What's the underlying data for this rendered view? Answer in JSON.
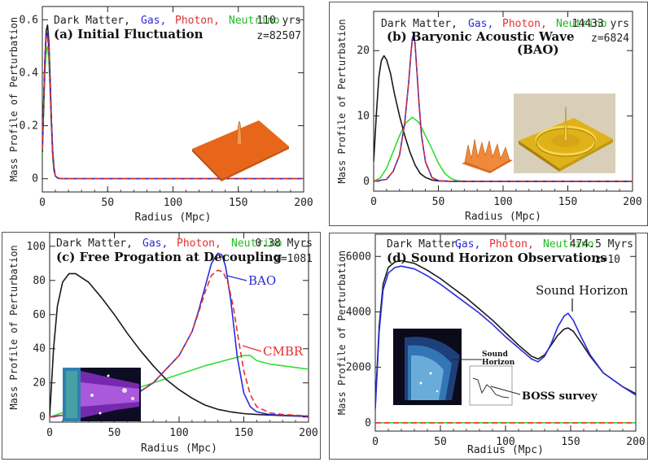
{
  "legend": {
    "dark_matter": "Dark Matter,",
    "gas": "Gas,",
    "photon": "Photon,",
    "neutrino": "Neutrino"
  },
  "colors": {
    "dark_matter": "#1a1a1a",
    "gas": "#2b2bd9",
    "photon": "#e03030",
    "neutrino": "#33dd33",
    "frame_bg": "#cccccc"
  },
  "panels": [
    {
      "id": "a",
      "title": "(a) Initial Fluctuation",
      "time": "110 yrs",
      "redshift": "z=82507"
    },
    {
      "id": "b",
      "title": "(b) Baryonic Acoustic Wave",
      "title2": "(BAO)",
      "time": "14433 yrs",
      "redshift": "z=6824"
    },
    {
      "id": "c",
      "title": "(c) Free Progation at Decoupling",
      "time": "0.38 Myrs",
      "redshift": "z=1081",
      "annotations": {
        "bao": "BAO",
        "cmbr": "CMBR"
      }
    },
    {
      "id": "d",
      "title": "(d) Sound Horizon Observations",
      "time": "474.5 Myrs",
      "redshift": "z=10",
      "annotations": {
        "sound_horizon": "Sound Horizon",
        "inset_sound": "Sound",
        "inset_horizon": "Horizon",
        "boss": "BOSS survey"
      }
    }
  ],
  "chart_data": [
    {
      "type": "line",
      "panel": "a",
      "xlabel": "Radius (Mpc)",
      "ylabel": "Mass Profile of Perturbation",
      "xlim": [
        0,
        200
      ],
      "ylim": [
        -0.05,
        0.65
      ],
      "xticks": [
        "0",
        "50",
        "100",
        "150",
        "200"
      ],
      "yticks": [
        "0",
        "0.2",
        "0.4",
        "0.6"
      ],
      "series": [
        {
          "name": "Dark Matter",
          "color": "#1a1a1a",
          "x": [
            0,
            1,
            2,
            3,
            4,
            5,
            6,
            7,
            8,
            9,
            10,
            12,
            15,
            200
          ],
          "y": [
            0.1,
            0.28,
            0.46,
            0.56,
            0.58,
            0.52,
            0.38,
            0.22,
            0.1,
            0.04,
            0.01,
            0.002,
            0,
            0
          ]
        },
        {
          "name": "Gas",
          "color": "#2b2bd9",
          "x": [
            0,
            1,
            2,
            3,
            4,
            5,
            6,
            7,
            8,
            9,
            10,
            12,
            15,
            200
          ],
          "y": [
            0.11,
            0.28,
            0.45,
            0.54,
            0.55,
            0.49,
            0.36,
            0.21,
            0.09,
            0.03,
            0.01,
            0.002,
            0,
            0
          ]
        },
        {
          "name": "Photon",
          "color": "#e03030",
          "dash": true,
          "x": [
            0,
            1,
            2,
            3,
            4,
            5,
            6,
            7,
            8,
            9,
            10,
            12,
            15,
            200
          ],
          "y": [
            0.11,
            0.28,
            0.45,
            0.53,
            0.54,
            0.48,
            0.35,
            0.2,
            0.09,
            0.03,
            0.01,
            0.002,
            0,
            0
          ]
        },
        {
          "name": "Neutrino",
          "color": "#33dd33",
          "x": [
            0,
            1,
            2,
            3,
            4,
            5,
            6,
            7,
            8,
            9,
            10,
            12,
            15,
            200
          ],
          "y": [
            0.09,
            0.24,
            0.4,
            0.48,
            0.5,
            0.45,
            0.33,
            0.19,
            0.08,
            0.03,
            0.01,
            0.002,
            0,
            0
          ]
        }
      ]
    },
    {
      "type": "line",
      "panel": "b",
      "xlabel": "Radius (Mpc)",
      "ylabel": "Mass Profile of Perturbation",
      "xlim": [
        0,
        200
      ],
      "ylim": [
        -1.5,
        26
      ],
      "xticks": [
        "0",
        "50",
        "100",
        "150",
        "200"
      ],
      "yticks": [
        "0",
        "10",
        "20"
      ],
      "series": [
        {
          "name": "Dark Matter",
          "color": "#1a1a1a",
          "x": [
            0,
            2,
            4,
            6,
            8,
            10,
            13,
            16,
            20,
            24,
            28,
            32,
            36,
            40,
            45,
            50,
            60,
            200
          ],
          "y": [
            3,
            10,
            16,
            18.5,
            19.2,
            18.6,
            16.5,
            13.5,
            10,
            7,
            4.5,
            2.5,
            1.2,
            0.6,
            0.2,
            0.05,
            0,
            0
          ]
        },
        {
          "name": "Gas",
          "color": "#2b2bd9",
          "x": [
            0,
            10,
            15,
            20,
            24,
            27,
            29,
            30,
            31,
            32,
            33,
            35,
            37,
            40,
            45,
            50,
            60,
            200
          ],
          "y": [
            0,
            0.3,
            1.5,
            4,
            9,
            15,
            20,
            22,
            22.3,
            21,
            18,
            12,
            7,
            3,
            0.6,
            0.1,
            0,
            0
          ]
        },
        {
          "name": "Photon",
          "color": "#e03030",
          "dash": true,
          "x": [
            0,
            10,
            15,
            20,
            24,
            27,
            29,
            30,
            31,
            32,
            33,
            35,
            37,
            40,
            45,
            50,
            60,
            200
          ],
          "y": [
            0,
            0.3,
            1.5,
            4,
            9,
            15,
            20,
            22,
            22.3,
            21,
            18,
            12,
            7,
            3,
            0.6,
            0.1,
            0,
            0
          ]
        },
        {
          "name": "Neutrino",
          "color": "#33dd33",
          "x": [
            0,
            5,
            10,
            15,
            20,
            25,
            30,
            35,
            40,
            45,
            50,
            55,
            60,
            65,
            70,
            200
          ],
          "y": [
            0,
            0.5,
            2,
            4.5,
            7,
            9,
            9.8,
            9,
            7,
            5,
            2.8,
            1.2,
            0.4,
            0.1,
            0,
            0
          ]
        }
      ]
    },
    {
      "type": "line",
      "panel": "c",
      "xlabel": "Radius (Mpc)",
      "ylabel": "Mass Profile of Perturbation",
      "xlim": [
        0,
        200
      ],
      "ylim": [
        -3,
        108
      ],
      "xticks": [
        "0",
        "50",
        "100",
        "150",
        "200"
      ],
      "yticks": [
        "0",
        "20",
        "40",
        "60",
        "80",
        "100"
      ],
      "series": [
        {
          "name": "Dark Matter",
          "color": "#1a1a1a",
          "x": [
            0,
            3,
            6,
            10,
            15,
            20,
            30,
            40,
            50,
            60,
            70,
            80,
            90,
            100,
            110,
            120,
            130,
            140,
            150,
            160,
            180,
            200
          ],
          "y": [
            0,
            40,
            65,
            79,
            84,
            84,
            79,
            70,
            60,
            49,
            39,
            30,
            22,
            16,
            11,
            7,
            4.5,
            3,
            2,
            1.5,
            0.8,
            0.3
          ]
        },
        {
          "name": "Gas",
          "color": "#2b2bd9",
          "x": [
            0,
            20,
            40,
            60,
            80,
            100,
            110,
            115,
            120,
            125,
            130,
            133,
            136,
            140,
            145,
            150,
            155,
            160,
            170,
            180,
            200
          ],
          "y": [
            0,
            2,
            5,
            10,
            20,
            36,
            50,
            62,
            76,
            90,
            96,
            95,
            88,
            68,
            35,
            14,
            6,
            3,
            1.5,
            1,
            0.5
          ]
        },
        {
          "name": "Photon",
          "color": "#e03030",
          "dash": true,
          "x": [
            0,
            20,
            40,
            60,
            80,
            100,
            110,
            115,
            120,
            125,
            130,
            134,
            138,
            142,
            146,
            150,
            155,
            160,
            170,
            180,
            200
          ],
          "y": [
            0,
            2,
            5,
            10,
            20,
            36,
            50,
            61,
            73,
            83,
            86,
            85,
            78,
            64,
            45,
            27,
            13,
            6,
            2.5,
            1.5,
            0.6
          ]
        },
        {
          "name": "Neutrino",
          "color": "#33dd33",
          "x": [
            0,
            20,
            40,
            60,
            80,
            100,
            120,
            135,
            145,
            150,
            155,
            160,
            170,
            180,
            190,
            200
          ],
          "y": [
            0,
            5,
            10,
            15,
            20,
            25,
            30,
            33,
            35,
            36,
            36,
            33,
            31,
            30,
            29,
            28
          ]
        }
      ]
    },
    {
      "type": "line",
      "panel": "d",
      "xlabel": "Radius (Mpc)",
      "ylabel": "Mass Profile of Perturbation",
      "xlim": [
        0,
        200
      ],
      "ylim": [
        -300,
        6800
      ],
      "xticks": [
        "0",
        "50",
        "100",
        "150",
        "200"
      ],
      "yticks": [
        "0",
        "2000",
        "4000",
        "6000"
      ],
      "series": [
        {
          "name": "Dark Matter",
          "color": "#1a1a1a",
          "x": [
            0,
            3,
            6,
            10,
            15,
            20,
            30,
            40,
            50,
            60,
            70,
            80,
            90,
            100,
            110,
            120,
            125,
            130,
            135,
            140,
            145,
            148,
            152,
            158,
            165,
            175,
            190,
            200
          ],
          "y": [
            600,
            3500,
            5000,
            5600,
            5800,
            5850,
            5750,
            5500,
            5200,
            4850,
            4500,
            4100,
            3700,
            3250,
            2800,
            2400,
            2300,
            2450,
            2800,
            3150,
            3380,
            3420,
            3300,
            2900,
            2400,
            1800,
            1300,
            1050
          ]
        },
        {
          "name": "Gas",
          "color": "#2b2bd9",
          "x": [
            0,
            3,
            6,
            10,
            15,
            20,
            30,
            40,
            50,
            60,
            70,
            80,
            90,
            100,
            110,
            120,
            125,
            130,
            135,
            140,
            145,
            148,
            152,
            158,
            165,
            175,
            190,
            200
          ],
          "y": [
            500,
            3300,
            4800,
            5400,
            5600,
            5650,
            5550,
            5300,
            5000,
            4650,
            4300,
            3950,
            3550,
            3100,
            2700,
            2300,
            2200,
            2400,
            2850,
            3450,
            3850,
            3950,
            3700,
            3100,
            2450,
            1800,
            1300,
            1000
          ]
        },
        {
          "name": "Photon",
          "color": "#e03030",
          "dash": true,
          "x": [
            0,
            200
          ],
          "y": [
            0,
            0
          ]
        },
        {
          "name": "Neutrino",
          "color": "#33dd33",
          "x": [
            0,
            200
          ],
          "y": [
            0,
            0
          ]
        }
      ]
    }
  ]
}
